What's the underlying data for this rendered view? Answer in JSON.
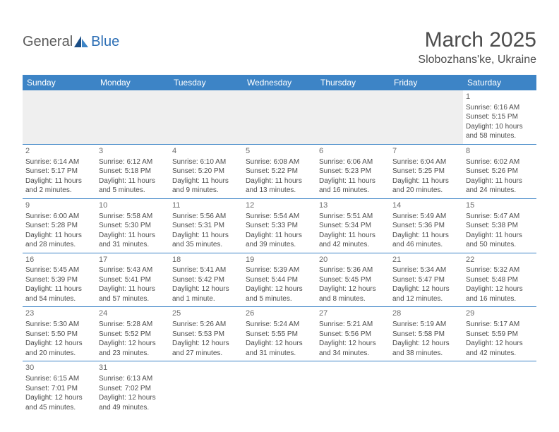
{
  "logo": {
    "text1": "General",
    "text2": "Blue"
  },
  "header": {
    "title": "March 2025",
    "location": "Slobozhans'ke, Ukraine"
  },
  "colors": {
    "header_bg": "#3d84c6",
    "header_text": "#ffffff",
    "text": "#4d4d4d",
    "logo_gray": "#5b5b5b",
    "logo_blue": "#2d6fb5",
    "empty_bg": "#efefef",
    "border": "#3d84c6"
  },
  "weekdays": [
    "Sunday",
    "Monday",
    "Tuesday",
    "Wednesday",
    "Thursday",
    "Friday",
    "Saturday"
  ],
  "weeks": [
    [
      null,
      null,
      null,
      null,
      null,
      null,
      {
        "n": "1",
        "sr": "Sunrise: 6:16 AM",
        "ss": "Sunset: 5:15 PM",
        "dl": "Daylight: 10 hours and 58 minutes."
      }
    ],
    [
      {
        "n": "2",
        "sr": "Sunrise: 6:14 AM",
        "ss": "Sunset: 5:17 PM",
        "dl": "Daylight: 11 hours and 2 minutes."
      },
      {
        "n": "3",
        "sr": "Sunrise: 6:12 AM",
        "ss": "Sunset: 5:18 PM",
        "dl": "Daylight: 11 hours and 5 minutes."
      },
      {
        "n": "4",
        "sr": "Sunrise: 6:10 AM",
        "ss": "Sunset: 5:20 PM",
        "dl": "Daylight: 11 hours and 9 minutes."
      },
      {
        "n": "5",
        "sr": "Sunrise: 6:08 AM",
        "ss": "Sunset: 5:22 PM",
        "dl": "Daylight: 11 hours and 13 minutes."
      },
      {
        "n": "6",
        "sr": "Sunrise: 6:06 AM",
        "ss": "Sunset: 5:23 PM",
        "dl": "Daylight: 11 hours and 16 minutes."
      },
      {
        "n": "7",
        "sr": "Sunrise: 6:04 AM",
        "ss": "Sunset: 5:25 PM",
        "dl": "Daylight: 11 hours and 20 minutes."
      },
      {
        "n": "8",
        "sr": "Sunrise: 6:02 AM",
        "ss": "Sunset: 5:26 PM",
        "dl": "Daylight: 11 hours and 24 minutes."
      }
    ],
    [
      {
        "n": "9",
        "sr": "Sunrise: 6:00 AM",
        "ss": "Sunset: 5:28 PM",
        "dl": "Daylight: 11 hours and 28 minutes."
      },
      {
        "n": "10",
        "sr": "Sunrise: 5:58 AM",
        "ss": "Sunset: 5:30 PM",
        "dl": "Daylight: 11 hours and 31 minutes."
      },
      {
        "n": "11",
        "sr": "Sunrise: 5:56 AM",
        "ss": "Sunset: 5:31 PM",
        "dl": "Daylight: 11 hours and 35 minutes."
      },
      {
        "n": "12",
        "sr": "Sunrise: 5:54 AM",
        "ss": "Sunset: 5:33 PM",
        "dl": "Daylight: 11 hours and 39 minutes."
      },
      {
        "n": "13",
        "sr": "Sunrise: 5:51 AM",
        "ss": "Sunset: 5:34 PM",
        "dl": "Daylight: 11 hours and 42 minutes."
      },
      {
        "n": "14",
        "sr": "Sunrise: 5:49 AM",
        "ss": "Sunset: 5:36 PM",
        "dl": "Daylight: 11 hours and 46 minutes."
      },
      {
        "n": "15",
        "sr": "Sunrise: 5:47 AM",
        "ss": "Sunset: 5:38 PM",
        "dl": "Daylight: 11 hours and 50 minutes."
      }
    ],
    [
      {
        "n": "16",
        "sr": "Sunrise: 5:45 AM",
        "ss": "Sunset: 5:39 PM",
        "dl": "Daylight: 11 hours and 54 minutes."
      },
      {
        "n": "17",
        "sr": "Sunrise: 5:43 AM",
        "ss": "Sunset: 5:41 PM",
        "dl": "Daylight: 11 hours and 57 minutes."
      },
      {
        "n": "18",
        "sr": "Sunrise: 5:41 AM",
        "ss": "Sunset: 5:42 PM",
        "dl": "Daylight: 12 hours and 1 minute."
      },
      {
        "n": "19",
        "sr": "Sunrise: 5:39 AM",
        "ss": "Sunset: 5:44 PM",
        "dl": "Daylight: 12 hours and 5 minutes."
      },
      {
        "n": "20",
        "sr": "Sunrise: 5:36 AM",
        "ss": "Sunset: 5:45 PM",
        "dl": "Daylight: 12 hours and 8 minutes."
      },
      {
        "n": "21",
        "sr": "Sunrise: 5:34 AM",
        "ss": "Sunset: 5:47 PM",
        "dl": "Daylight: 12 hours and 12 minutes."
      },
      {
        "n": "22",
        "sr": "Sunrise: 5:32 AM",
        "ss": "Sunset: 5:48 PM",
        "dl": "Daylight: 12 hours and 16 minutes."
      }
    ],
    [
      {
        "n": "23",
        "sr": "Sunrise: 5:30 AM",
        "ss": "Sunset: 5:50 PM",
        "dl": "Daylight: 12 hours and 20 minutes."
      },
      {
        "n": "24",
        "sr": "Sunrise: 5:28 AM",
        "ss": "Sunset: 5:52 PM",
        "dl": "Daylight: 12 hours and 23 minutes."
      },
      {
        "n": "25",
        "sr": "Sunrise: 5:26 AM",
        "ss": "Sunset: 5:53 PM",
        "dl": "Daylight: 12 hours and 27 minutes."
      },
      {
        "n": "26",
        "sr": "Sunrise: 5:24 AM",
        "ss": "Sunset: 5:55 PM",
        "dl": "Daylight: 12 hours and 31 minutes."
      },
      {
        "n": "27",
        "sr": "Sunrise: 5:21 AM",
        "ss": "Sunset: 5:56 PM",
        "dl": "Daylight: 12 hours and 34 minutes."
      },
      {
        "n": "28",
        "sr": "Sunrise: 5:19 AM",
        "ss": "Sunset: 5:58 PM",
        "dl": "Daylight: 12 hours and 38 minutes."
      },
      {
        "n": "29",
        "sr": "Sunrise: 5:17 AM",
        "ss": "Sunset: 5:59 PM",
        "dl": "Daylight: 12 hours and 42 minutes."
      }
    ],
    [
      {
        "n": "30",
        "sr": "Sunrise: 6:15 AM",
        "ss": "Sunset: 7:01 PM",
        "dl": "Daylight: 12 hours and 45 minutes."
      },
      {
        "n": "31",
        "sr": "Sunrise: 6:13 AM",
        "ss": "Sunset: 7:02 PM",
        "dl": "Daylight: 12 hours and 49 minutes."
      },
      null,
      null,
      null,
      null,
      null
    ]
  ]
}
